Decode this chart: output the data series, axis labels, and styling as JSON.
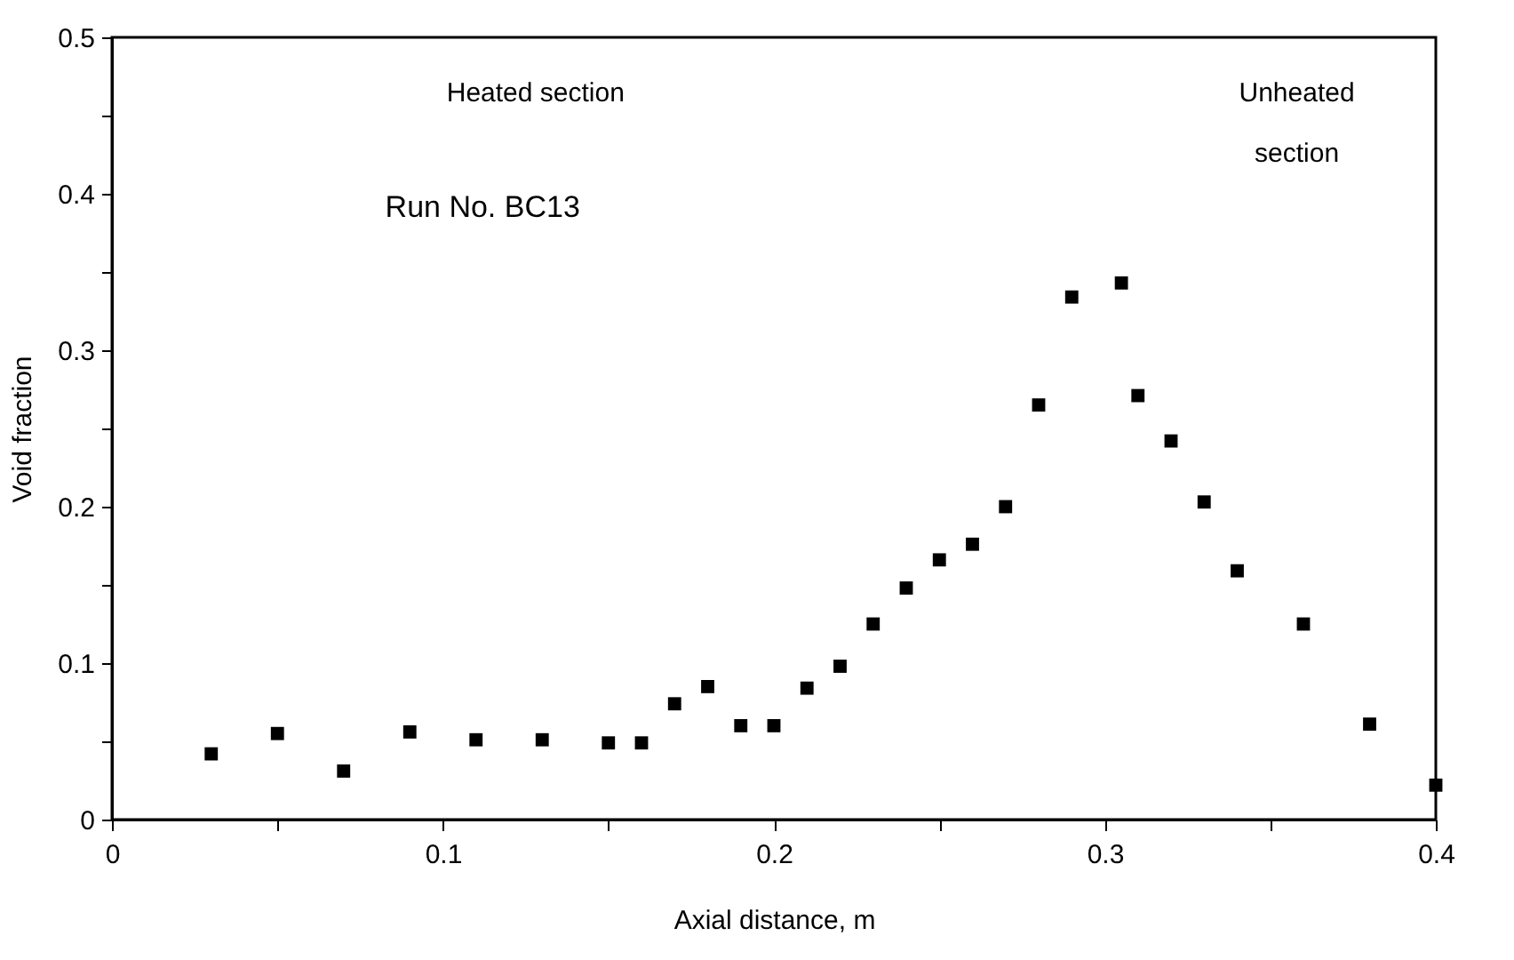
{
  "chart_data": {
    "type": "scatter",
    "xlabel": "Axial distance, m",
    "ylabel": "Void fraction",
    "x": [
      0.03,
      0.05,
      0.07,
      0.09,
      0.11,
      0.13,
      0.15,
      0.16,
      0.17,
      0.18,
      0.19,
      0.2,
      0.21,
      0.22,
      0.23,
      0.24,
      0.25,
      0.26,
      0.27,
      0.28,
      0.29,
      0.305,
      0.31,
      0.32,
      0.33,
      0.34,
      0.36,
      0.38,
      0.4
    ],
    "series": [
      {
        "color": "#000000",
        "values": [
          0.042,
          0.055,
          0.031,
          0.056,
          0.051,
          0.051,
          0.049,
          0.049,
          0.074,
          0.085,
          0.06,
          0.06,
          0.084,
          0.098,
          0.125,
          0.148,
          0.166,
          0.176,
          0.2,
          0.265,
          0.334,
          0.343,
          0.271,
          0.242,
          0.203,
          0.159,
          0.125,
          0.061,
          0.022
        ]
      }
    ],
    "marker": "square",
    "xlim": [
      0,
      0.4
    ],
    "ylim": [
      0,
      0.5
    ],
    "xticks": [
      {
        "value": 0,
        "label": "0"
      },
      {
        "value": 0.05,
        "label": null
      },
      0.1,
      {
        "value": 0.15,
        "label": null
      },
      0.2,
      {
        "value": 0.25,
        "label": null
      },
      0.3,
      {
        "value": 0.35,
        "label": null
      },
      0.4
    ],
    "yticks": [
      {
        "value": 0,
        "label": "0"
      },
      {
        "value": 0.05,
        "label": null
      },
      0.1,
      {
        "value": 0.15,
        "label": null
      },
      0.2,
      {
        "value": 0.25,
        "label": null
      },
      0.3,
      {
        "value": 0.35,
        "label": null
      },
      0.4,
      {
        "value": 0.45,
        "label": null
      },
      0.5
    ],
    "annotations": [
      "Heated section",
      "Unheated section",
      "Run No. BC13"
    ],
    "grid": false
  }
}
